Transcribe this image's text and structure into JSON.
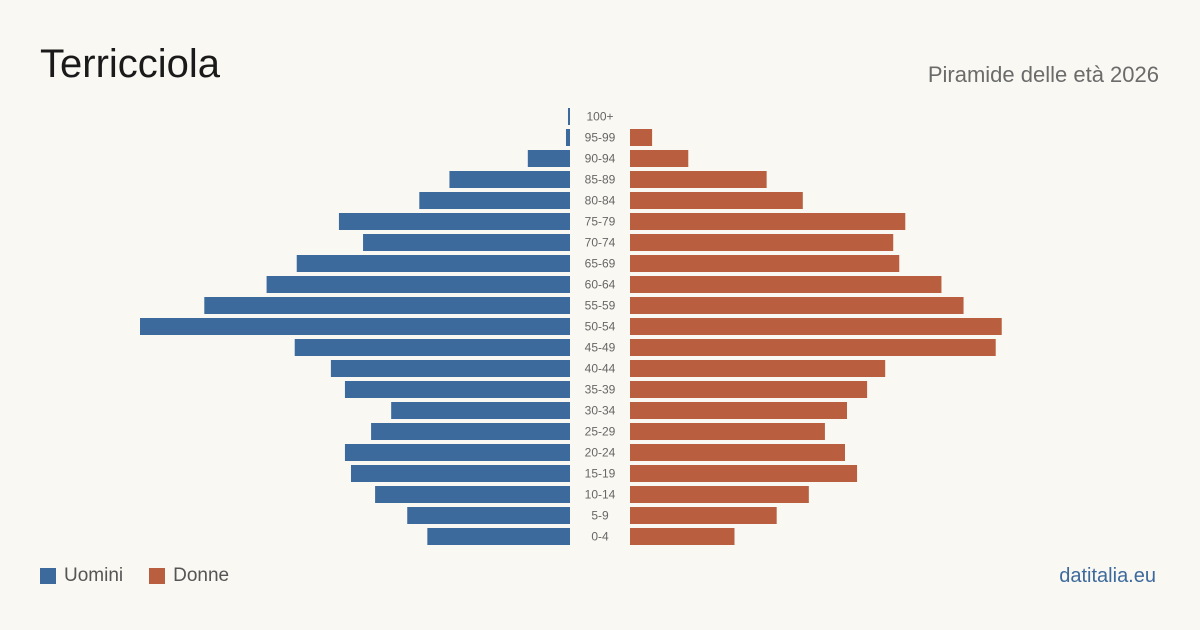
{
  "header": {
    "title": "Terricciola",
    "subtitle": "Piramide delle età 2026"
  },
  "legend": {
    "men_label": "Uomini",
    "women_label": "Donne"
  },
  "source": "datitalia.eu",
  "colors": {
    "men": "#3d6a9c",
    "women": "#b95e3e",
    "background": "#faf8f3"
  },
  "chart_data": {
    "type": "bar",
    "orientation": "horizontal-pyramid",
    "title": "Terricciola",
    "subtitle": "Piramide delle età 2026",
    "categories": [
      "100+",
      "95-99",
      "90-94",
      "85-89",
      "80-84",
      "75-79",
      "70-74",
      "65-69",
      "60-64",
      "55-59",
      "50-54",
      "45-49",
      "40-44",
      "35-39",
      "30-34",
      "25-29",
      "20-24",
      "15-19",
      "10-14",
      "5-9",
      "0-4"
    ],
    "series": [
      {
        "name": "Uomini",
        "values": [
          1,
          2,
          21,
          60,
          75,
          115,
          103,
          136,
          151,
          182,
          214,
          137,
          119,
          112,
          89,
          99,
          112,
          109,
          97,
          81,
          71
        ]
      },
      {
        "name": "Donne",
        "values": [
          0,
          11,
          29,
          68,
          86,
          137,
          131,
          134,
          155,
          166,
          185,
          182,
          127,
          118,
          108,
          97,
          107,
          113,
          89,
          73,
          52
        ]
      }
    ],
    "legend_position": "bottom-left",
    "grid": false
  }
}
